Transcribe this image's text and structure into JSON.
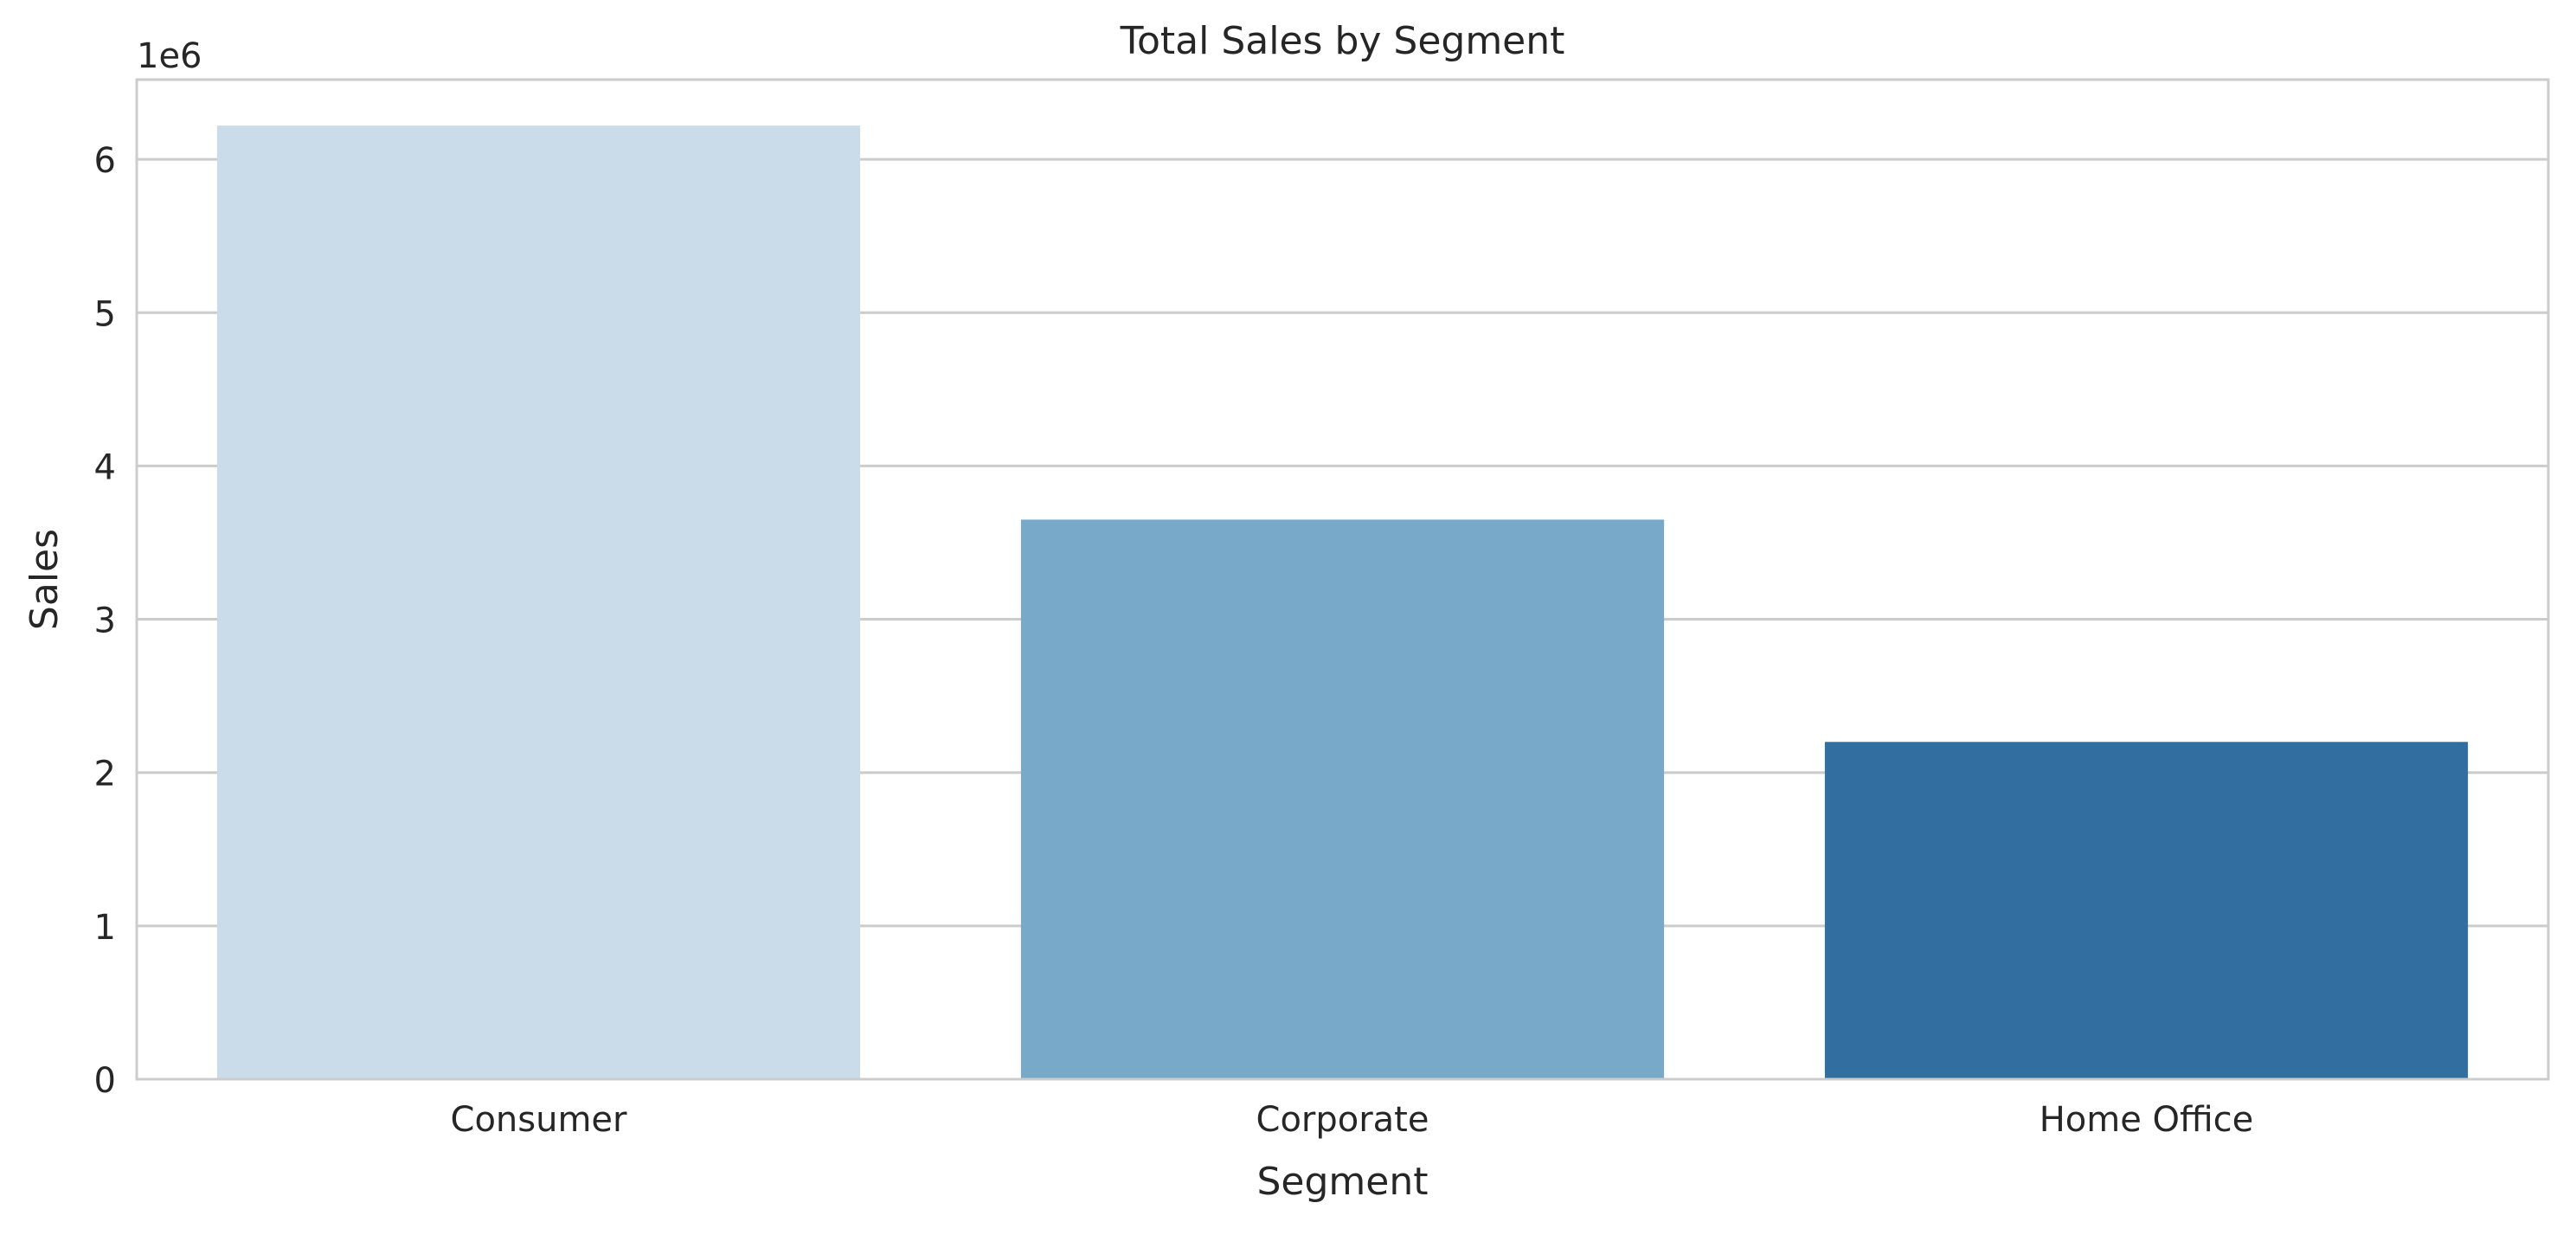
{
  "chart_data": {
    "type": "bar",
    "title": "Total Sales by Segment",
    "xlabel": "Segment",
    "ylabel": "Sales",
    "y_offset_label": "1e6",
    "y_scale_factor": 1000000,
    "categories": [
      "Consumer",
      "Corporate",
      "Home Office"
    ],
    "values": [
      6220000,
      3650000,
      2200000
    ],
    "colors": [
      "#cadbea",
      "#79a9c8",
      "#336ea1"
    ],
    "ylim": [
      0,
      6520000
    ],
    "yticks": [
      0,
      1000000,
      2000000,
      3000000,
      4000000,
      5000000,
      6000000
    ],
    "ytick_labels": [
      "0",
      "1",
      "2",
      "3",
      "4",
      "5",
      "6"
    ],
    "grid": true,
    "grid_axis": "y",
    "grid_color": "#cccccc",
    "background_color": "#ffffff",
    "legend": "none"
  }
}
